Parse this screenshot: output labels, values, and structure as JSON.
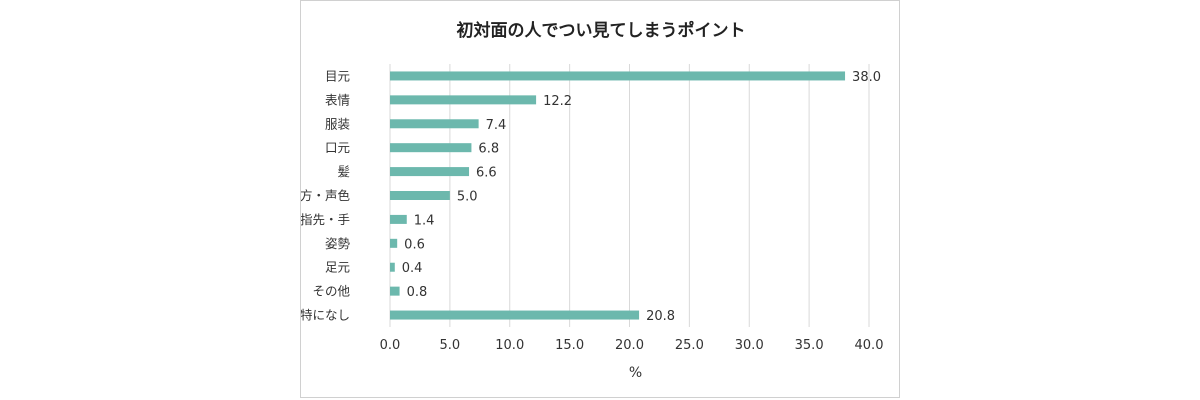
{
  "chart_data": {
    "type": "bar",
    "orientation": "horizontal",
    "title": "初対面の人でつい見てしまうポイント",
    "xlabel": "%",
    "ylabel": "",
    "categories": [
      "目元",
      "表情",
      "服装",
      "口元",
      "髪",
      "話し方・声色",
      "指先・手",
      "姿勢",
      "足元",
      "その他",
      "特になし"
    ],
    "values": [
      38.0,
      12.2,
      7.4,
      6.8,
      6.6,
      5.0,
      1.4,
      0.6,
      0.4,
      0.8,
      20.8
    ],
    "data_labels": [
      "38.0",
      "12.2",
      "7.4",
      "6.8",
      "6.6",
      "5.0",
      "1.4",
      "0.6",
      "0.4",
      "0.8",
      "20.8"
    ],
    "xlim": [
      0,
      40
    ],
    "xticks": [
      "0.0",
      "5.0",
      "10.0",
      "15.0",
      "20.0",
      "25.0",
      "30.0",
      "35.0",
      "40.0"
    ],
    "grid": true,
    "legend": "none",
    "colors": {
      "bar": "#6cb8ad",
      "grid": "#d9d9d9",
      "text": "#333333"
    }
  }
}
